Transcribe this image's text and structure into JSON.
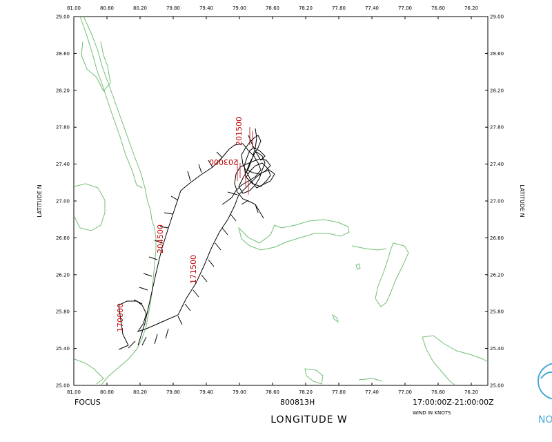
{
  "map": {
    "lon_ticks": [
      "81.00",
      "80.60",
      "80.20",
      "79.80",
      "79.40",
      "79.00",
      "78.60",
      "78.20",
      "77.80",
      "77.40",
      "77.00",
      "76.60",
      "76.20"
    ],
    "lat_ticks": [
      "25.00",
      "25.40",
      "25.80",
      "26.20",
      "26.60",
      "27.00",
      "27.40",
      "27.80",
      "28.20",
      "28.60",
      "29.00"
    ],
    "lat_label": "LATITUDE  N",
    "lon_label": "LONGITUDE  W",
    "mission": "FOCUS",
    "flight_id": "800813H",
    "time_range": "17:00:00Z-21:00:00Z",
    "wind_units": "WIND IN KNOTS",
    "logo_text": "NO",
    "colors": {
      "coastline": "#6fbf73",
      "track": "#000000",
      "time_labels": "#c00000"
    }
  },
  "track_labels": [
    {
      "text": "170000"
    },
    {
      "text": "171500"
    },
    {
      "text": "204500"
    },
    {
      "text": "203000"
    },
    {
      "text": "201500"
    }
  ]
}
